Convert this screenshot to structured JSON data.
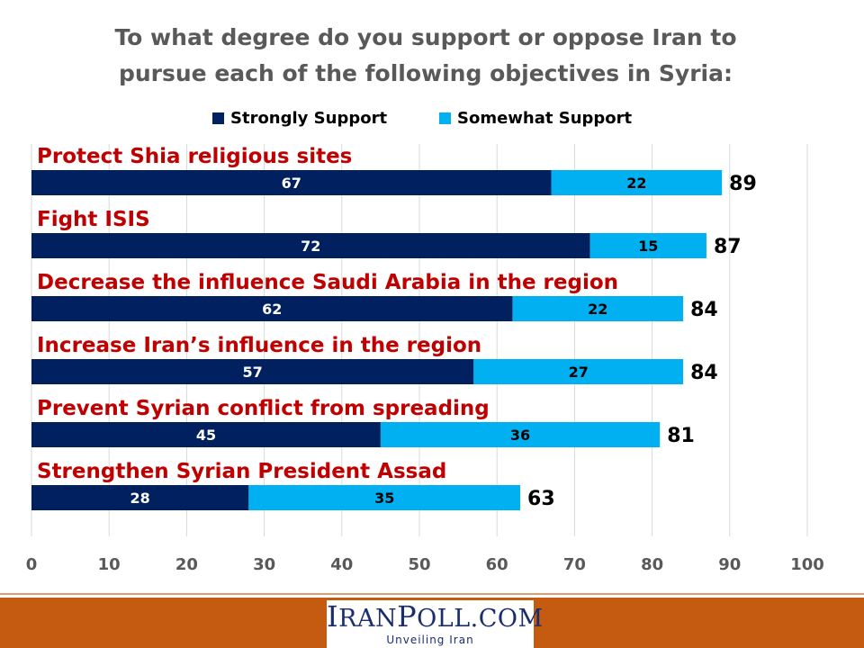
{
  "title_line1": "To what degree do you support or oppose Iran to",
  "title_line2": "pursue each of the following objectives in Syria:",
  "colors": {
    "strong": "#002060",
    "somewhat": "#00b0f0",
    "category_label": "#c00000",
    "grid": "#d9d9d9"
  },
  "footer": {
    "logo_text": "IranPoll.com",
    "tagline": "Unveiling Iran"
  },
  "chart_data": {
    "type": "bar",
    "orientation": "horizontal",
    "stacked": true,
    "categories": [
      "Protect Shia religious sites",
      "Fight ISIS",
      "Decrease the influence Saudi Arabia in the region",
      "Increase Iran’s influence in the region",
      "Prevent Syrian conflict from spreading",
      "Strengthen Syrian President Assad"
    ],
    "series": [
      {
        "name": "Strongly Support",
        "values": [
          67,
          72,
          62,
          57,
          45,
          28
        ]
      },
      {
        "name": "Somewhat Support",
        "values": [
          22,
          15,
          22,
          27,
          36,
          35
        ]
      }
    ],
    "totals": [
      89,
      87,
      84,
      84,
      81,
      63
    ],
    "xlim": [
      0,
      100
    ],
    "xticks": [
      0,
      10,
      20,
      30,
      40,
      50,
      60,
      70,
      80,
      90,
      100
    ],
    "grid": true,
    "legend": "top"
  }
}
